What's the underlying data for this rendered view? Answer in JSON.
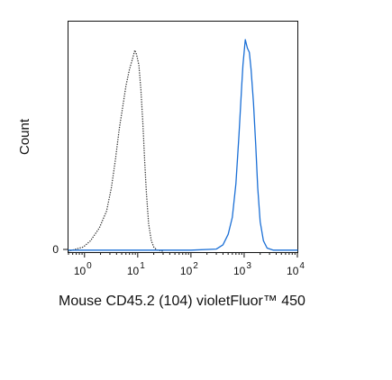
{
  "chart_data": {
    "type": "line",
    "xlabel": "Mouse CD45.2 (104) violetFluor™ 450",
    "ylabel": "Count",
    "x_scale": "log",
    "xlim": [
      0.5,
      10000
    ],
    "ylim": [
      0,
      100
    ],
    "x_ticks": [
      {
        "value": 1,
        "base": "10",
        "exp": "0"
      },
      {
        "value": 10,
        "base": "10",
        "exp": "1"
      },
      {
        "value": 100,
        "base": "10",
        "exp": "2"
      },
      {
        "value": 1000,
        "base": "10",
        "exp": "3"
      },
      {
        "value": 10000,
        "base": "10",
        "exp": "4"
      }
    ],
    "y_ticks": [
      {
        "value": 0,
        "label": "0"
      }
    ],
    "grid": false,
    "legend": "none",
    "series": [
      {
        "style": "dotted",
        "color": "#333333",
        "points": [
          [
            0.5,
            0
          ],
          [
            0.95,
            2
          ],
          [
            1.3,
            5
          ],
          [
            1.9,
            11
          ],
          [
            2.6,
            19
          ],
          [
            3.2,
            30
          ],
          [
            3.8,
            43
          ],
          [
            4.5,
            58
          ],
          [
            5.2,
            68
          ],
          [
            6.0,
            78
          ],
          [
            7.0,
            86
          ],
          [
            8.0,
            91
          ],
          [
            8.8,
            95
          ],
          [
            9.5,
            93
          ],
          [
            10.5,
            88
          ],
          [
            11.5,
            76
          ],
          [
            12.5,
            60
          ],
          [
            13.5,
            43
          ],
          [
            14.5,
            28
          ],
          [
            16.0,
            13
          ],
          [
            18.0,
            5
          ],
          [
            20.0,
            2
          ],
          [
            23.0,
            0.5
          ],
          [
            30.0,
            0
          ]
        ]
      },
      {
        "style": "solid",
        "color": "#1a6fd6",
        "points": [
          [
            0.5,
            0.5
          ],
          [
            100,
            0.5
          ],
          [
            300,
            1
          ],
          [
            400,
            3
          ],
          [
            500,
            8
          ],
          [
            600,
            16
          ],
          [
            700,
            32
          ],
          [
            800,
            55
          ],
          [
            900,
            78
          ],
          [
            950,
            88
          ],
          [
            1000,
            94
          ],
          [
            1050,
            100
          ],
          [
            1150,
            96
          ],
          [
            1250,
            94
          ],
          [
            1350,
            86
          ],
          [
            1500,
            70
          ],
          [
            1650,
            50
          ],
          [
            1800,
            30
          ],
          [
            2000,
            14
          ],
          [
            2300,
            5
          ],
          [
            2700,
            1.5
          ],
          [
            3500,
            0.5
          ],
          [
            10000,
            0.5
          ]
        ]
      }
    ]
  }
}
